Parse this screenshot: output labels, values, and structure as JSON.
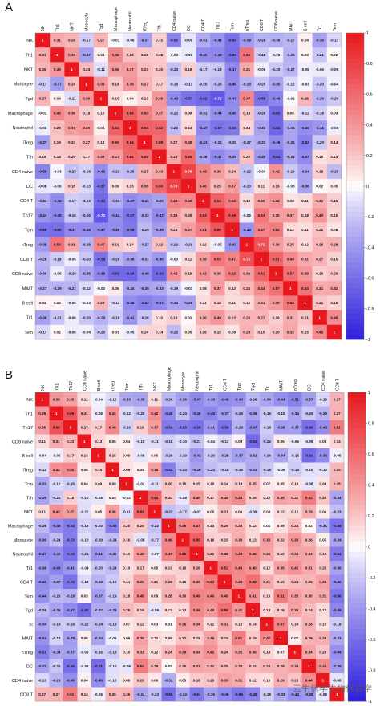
{
  "panels": [
    {
      "letter": "A"
    },
    {
      "letter": "B"
    }
  ],
  "watermark": "云生信学生物信息学",
  "chart_data": [
    {
      "type": "heatmap",
      "panel": "A",
      "title": "",
      "labels": [
        "NK",
        "Th1",
        "NKT",
        "Monocyte",
        "Tgd",
        "Macrophage",
        "Neutrophil",
        "iTreg",
        "Tfh",
        "CD4 naive",
        "DC",
        "CD4 T",
        "Th17",
        "Tcm",
        "nTreg",
        "CD8 T",
        "CD8 naive",
        "MAIT",
        "B cell",
        "Tr1",
        "Tem"
      ],
      "values": [
        [
          1,
          0.31,
          0.26,
          -0.17,
          0.27,
          -0.01,
          -0.06,
          -0.37,
          0.15,
          -0.5,
          -0.08,
          -0.31,
          -0.43,
          -0.59,
          -0.39,
          -0.28,
          -0.3,
          -0.27,
          0.04,
          -0.36,
          -0.13
        ],
        [
          0.31,
          1,
          0.39,
          -0.37,
          0.04,
          0.46,
          0.23,
          0.19,
          0.18,
          -0.03,
          -0.06,
          -0.46,
          -0.48,
          -0.6,
          0.56,
          -0.18,
          -0.06,
          -0.29,
          0.03,
          -0.21,
          0.02
        ],
        [
          0.26,
          0.39,
          1,
          0.24,
          -0.11,
          0.36,
          0.37,
          0.23,
          0.2,
          -0.23,
          0.16,
          -0.17,
          -0.19,
          -0.47,
          0.31,
          -0.05,
          -0.2,
          -0.27,
          -0.05,
          -0.06,
          -0.06
        ],
        [
          -0.17,
          -0.37,
          0.24,
          1,
          0.39,
          0.18,
          0.39,
          0.27,
          0.17,
          -0.16,
          -0.13,
          -0.2,
          -0.26,
          -0.46,
          -0.28,
          -0.2,
          -0.35,
          -0.12,
          -0.03,
          -0.2,
          -0.04
        ],
        [
          0.27,
          0.04,
          -0.11,
          0.39,
          1,
          0.1,
          0.04,
          0.13,
          0.39,
          -0.46,
          -0.57,
          -0.62,
          -0.72,
          -0.47,
          0.47,
          -0.58,
          -0.49,
          -0.02,
          0.26,
          -0.29,
          -0.2
        ],
        [
          -0.01,
          0.46,
          0.36,
          0.18,
          0.1,
          1,
          0.64,
          0.5,
          0.37,
          -0.22,
          0.09,
          -0.31,
          -0.44,
          -0.45,
          0.19,
          -0.26,
          -0.62,
          0.06,
          -0.12,
          -0.18,
          0.03
        ],
        [
          -0.06,
          0.23,
          0.37,
          0.39,
          0.04,
          0.64,
          1,
          0.64,
          0.62,
          -0.25,
          0.13,
          -0.47,
          -0.57,
          -0.55,
          0.14,
          -0.36,
          -0.64,
          -0.34,
          -0.46,
          -0.41,
          -0.05
        ],
        [
          -0.37,
          0.19,
          0.23,
          0.27,
          0.13,
          0.5,
          0.64,
          1,
          0.58,
          0.27,
          0.36,
          -0.41,
          -0.32,
          -0.25,
          -0.27,
          -0.31,
          -0.46,
          -0.35,
          -0.52,
          -0.2,
          0.14
        ],
        [
          0.15,
          0.18,
          0.2,
          0.17,
          0.39,
          0.37,
          0.62,
          0.58,
          1,
          0.33,
          0.6,
          -0.36,
          -0.47,
          -0.39,
          0.22,
          -0.4,
          -0.63,
          -0.33,
          -0.47,
          0.1,
          0.14
        ],
        [
          -0.5,
          -0.03,
          -0.23,
          -0.16,
          -0.46,
          -0.22,
          -0.25,
          0.27,
          0.33,
          1,
          0.78,
          0.48,
          0.36,
          0.24,
          -0.22,
          -0.03,
          0.42,
          -0.19,
          -0.34,
          0.16,
          -0.25
        ],
        [
          -0.08,
          -0.06,
          0.16,
          -0.13,
          -0.57,
          0.09,
          0.13,
          0.36,
          0.6,
          0.78,
          1,
          0.46,
          0.25,
          0.37,
          -0.2,
          0.11,
          0.19,
          -0.03,
          -0.36,
          0.02,
          0.05
        ],
        [
          -0.31,
          -0.46,
          -0.17,
          -0.2,
          -0.62,
          -0.31,
          -0.47,
          -0.41,
          -0.36,
          0.48,
          0.46,
          1,
          0.64,
          0.51,
          0.12,
          0.36,
          0.42,
          0.08,
          0.11,
          0.3,
          0.16
        ],
        [
          -0.43,
          -0.48,
          -0.19,
          -0.26,
          -0.72,
          -0.44,
          -0.57,
          -0.32,
          -0.47,
          0.36,
          0.25,
          0.64,
          1,
          0.69,
          -0.05,
          0.53,
          0.35,
          0.37,
          0.18,
          0.4,
          0.15
        ],
        [
          -0.59,
          -0.6,
          -0.47,
          -0.46,
          -0.47,
          -0.45,
          -0.55,
          -0.25,
          -0.39,
          0.24,
          0.37,
          0.51,
          0.69,
          1,
          -0.43,
          0.47,
          0.52,
          0.12,
          0.11,
          0.22,
          0.08
        ],
        [
          -0.39,
          0.56,
          0.31,
          -0.28,
          0.47,
          0.19,
          0.14,
          -0.27,
          0.22,
          -0.22,
          -0.2,
          0.12,
          -0.05,
          -0.43,
          1,
          0.72,
          0.36,
          0.25,
          0.12,
          0.26,
          0.28
        ],
        [
          -0.28,
          -0.18,
          -0.05,
          -0.2,
          -0.58,
          -0.26,
          -0.36,
          -0.31,
          -0.4,
          -0.03,
          0.11,
          0.36,
          0.53,
          0.47,
          0.72,
          1,
          0.61,
          0.44,
          0.31,
          0.27,
          0.15
        ],
        [
          -0.3,
          -0.06,
          -0.2,
          -0.35,
          -0.49,
          -0.62,
          -0.64,
          -0.46,
          -0.63,
          0.42,
          0.19,
          0.42,
          0.35,
          0.52,
          0.36,
          0.61,
          1,
          0.57,
          0.39,
          0.16,
          0.2
        ],
        [
          -0.27,
          -0.29,
          -0.27,
          -0.12,
          -0.02,
          0.06,
          -0.34,
          -0.35,
          -0.33,
          -0.19,
          -0.03,
          0.08,
          0.37,
          0.12,
          0.25,
          0.44,
          0.57,
          1,
          0.54,
          0.31,
          0.32
        ],
        [
          0.04,
          0.03,
          -0.05,
          -0.03,
          0.26,
          -0.12,
          -0.46,
          -0.52,
          -0.47,
          -0.34,
          -0.36,
          0.11,
          0.18,
          0.11,
          0.12,
          0.31,
          0.39,
          0.54,
          1,
          0.21,
          0.15
        ],
        [
          -0.36,
          -0.21,
          -0.06,
          -0.2,
          -0.29,
          -0.18,
          -0.41,
          -0.2,
          0.1,
          0.16,
          0.02,
          0.3,
          0.4,
          0.22,
          0.26,
          0.27,
          0.16,
          0.31,
          0.21,
          1,
          0.45
        ],
        [
          -0.13,
          0.02,
          -0.06,
          -0.04,
          -0.2,
          0.03,
          -0.05,
          0.14,
          0.14,
          -0.25,
          0.05,
          0.16,
          0.15,
          0.08,
          0.28,
          0.15,
          0.2,
          0.32,
          0.15,
          0.45,
          1
        ]
      ],
      "colorbar": {
        "ticks": [
          1,
          0.8,
          0.6,
          0.4,
          0.2,
          0,
          -0.2,
          -0.4,
          -0.6,
          -0.8,
          -1
        ],
        "low": "#2e1fdc",
        "mid": "#ffffff",
        "high": "#e8181e"
      }
    },
    {
      "type": "heatmap",
      "panel": "B",
      "title": "",
      "labels": [
        "NK",
        "Th1",
        "Th17",
        "CD8 naive",
        "B cell",
        "iTreg",
        "Tcm",
        "Tfh",
        "NKT",
        "Macrophage",
        "Monocyte",
        "Neutrophil",
        "Tr1",
        "CD4 T",
        "Tem",
        "Tgd",
        "Tc",
        "MAIT",
        "nTreg",
        "DC",
        "CD4 naive",
        "CD8 T"
      ],
      "values": [
        [
          1,
          0.39,
          0.35,
          0.11,
          -0.04,
          -0.12,
          -0.33,
          -0.35,
          0.11,
          -0.26,
          -0.36,
          -0.47,
          -0.38,
          -0.46,
          -0.44,
          -0.26,
          -0.34,
          -0.44,
          -0.51,
          -0.37,
          -0.13,
          0.27
        ],
        [
          0.39,
          1,
          0.69,
          0.31,
          -0.05,
          0.42,
          -0.12,
          -0.2,
          0.42,
          -0.46,
          -0.24,
          -0.45,
          -0.49,
          -0.37,
          -0.26,
          -0.36,
          -0.19,
          -0.15,
          -0.34,
          -0.2,
          -0.29,
          0.27
        ],
        [
          0.35,
          0.69,
          1,
          0.23,
          0.17,
          0.45,
          -0.16,
          0.16,
          0.37,
          -0.54,
          -0.53,
          -0.59,
          -0.41,
          -0.59,
          -0.29,
          -0.47,
          -0.18,
          -0.38,
          -0.37,
          -0.6,
          -0.45,
          0.51
        ],
        [
          0.11,
          0.31,
          0.23,
          1,
          0.13,
          0.06,
          0.04,
          -0.1,
          -0.11,
          -0.16,
          -0.1,
          -0.21,
          -0.04,
          -0.12,
          0.03,
          -0.62,
          -0.22,
          0.05,
          -0.06,
          -0.06,
          0.04,
          0.14
        ],
        [
          -0.04,
          -0.05,
          0.17,
          0.13,
          1,
          0.15,
          0.09,
          -0.08,
          0.05,
          -0.2,
          -0.19,
          -0.41,
          -0.2,
          -0.28,
          -0.37,
          -0.32,
          -0.24,
          -0.34,
          -0.16,
          -0.61,
          -0.46,
          -0.05
        ],
        [
          -0.12,
          0.42,
          0.45,
          0.06,
          0.15,
          1,
          0.09,
          0.04,
          0.36,
          -0.52,
          -0.24,
          -0.36,
          -0.24,
          -0.18,
          -0.19,
          -0.33,
          -0.19,
          -0.06,
          -0.18,
          -0.1,
          -0.1,
          0.25
        ],
        [
          -0.33,
          -0.12,
          -0.16,
          0.04,
          0.09,
          0.09,
          1,
          -0.02,
          -0.11,
          0.2,
          0.16,
          0.15,
          0.1,
          0.14,
          0.18,
          0.25,
          0.07,
          0.05,
          0.1,
          -0.08,
          0.08,
          0.26
        ],
        [
          -0.35,
          -0.2,
          0.16,
          -0.1,
          -0.08,
          0.04,
          -0.02,
          1,
          0.63,
          0.2,
          -0.08,
          0.4,
          0.17,
          0.36,
          0.45,
          0.19,
          0.12,
          0.35,
          0.31,
          0.52,
          0.2,
          -0.34
        ],
        [
          0.11,
          0.42,
          0.37,
          -0.11,
          0.05,
          0.36,
          -0.11,
          0.63,
          1,
          -0.22,
          -0.17,
          -0.07,
          0.05,
          0.21,
          0.08,
          -0.09,
          0.03,
          0.12,
          0.12,
          0.29,
          0.06,
          -0.23
        ],
        [
          -0.26,
          -0.46,
          -0.54,
          -0.16,
          -0.2,
          -0.52,
          0.2,
          0.2,
          -0.22,
          1,
          0.46,
          0.47,
          0.13,
          0.26,
          0.28,
          0.12,
          0.01,
          0.09,
          0.24,
          0.02,
          -0.31,
          -0.58
        ],
        [
          -0.36,
          -0.24,
          -0.53,
          -0.1,
          -0.19,
          -0.24,
          0.16,
          -0.08,
          -0.17,
          0.46,
          1,
          0.65,
          0.16,
          0.15,
          0.3,
          0.13,
          0.36,
          0.22,
          0.39,
          0.26,
          0.05,
          -0.34
        ],
        [
          -0.47,
          -0.45,
          -0.59,
          -0.21,
          -0.41,
          -0.36,
          0.15,
          0.4,
          -0.07,
          0.47,
          0.65,
          1,
          0.26,
          0.38,
          0.49,
          0.46,
          0.34,
          0.18,
          0.34,
          0.33,
          0.18,
          -0.54
        ],
        [
          -0.38,
          -0.49,
          -0.41,
          -0.04,
          -0.2,
          -0.24,
          0.1,
          0.17,
          0.05,
          0.13,
          0.16,
          0.26,
          1,
          0.52,
          0.46,
          0.4,
          0.12,
          0.35,
          0.42,
          0.31,
          0.2,
          -0.36
        ],
        [
          -0.46,
          -0.37,
          -0.59,
          -0.12,
          -0.28,
          -0.18,
          0.14,
          0.36,
          0.21,
          0.26,
          0.15,
          0.38,
          0.52,
          1,
          0.45,
          0.58,
          0.31,
          0.19,
          0.24,
          0.26,
          0.35,
          -0.46
        ],
        [
          -0.44,
          -0.26,
          -0.29,
          0.03,
          -0.37,
          -0.19,
          0.18,
          0.45,
          0.08,
          0.28,
          0.3,
          0.49,
          0.46,
          0.45,
          1,
          0.41,
          0.13,
          0.51,
          0.35,
          0.3,
          0.31,
          -0.56
        ],
        [
          -0.26,
          -0.36,
          -0.47,
          -0.62,
          -0.32,
          -0.33,
          0.25,
          0.19,
          -0.09,
          0.12,
          0.13,
          0.46,
          0.4,
          0.58,
          0.41,
          1,
          0.14,
          0.19,
          0.36,
          0.24,
          0.12,
          -0.49
        ],
        [
          -0.34,
          -0.19,
          -0.18,
          -0.22,
          -0.24,
          -0.19,
          0.07,
          0.12,
          0.03,
          0.01,
          0.36,
          0.34,
          0.12,
          0.31,
          0.13,
          0.14,
          1,
          0.47,
          0.14,
          0.28,
          0.1,
          -0.18
        ],
        [
          -0.44,
          -0.15,
          -0.38,
          0.05,
          -0.34,
          -0.06,
          0.05,
          0.35,
          0.12,
          0.09,
          0.22,
          0.18,
          0.35,
          0.19,
          0.51,
          0.19,
          0.47,
          1,
          0.07,
          0.28,
          0.29,
          -0.33
        ],
        [
          -0.51,
          -0.34,
          -0.37,
          -0.06,
          -0.16,
          -0.18,
          0.1,
          0.31,
          0.12,
          0.24,
          0.39,
          0.34,
          0.42,
          0.24,
          0.35,
          0.36,
          0.14,
          0.07,
          1,
          0.34,
          0.2,
          -0.44
        ],
        [
          -0.37,
          -0.2,
          -0.6,
          -0.06,
          -0.61,
          -0.1,
          -0.08,
          0.52,
          0.29,
          0.02,
          0.26,
          0.33,
          0.31,
          0.26,
          0.3,
          0.24,
          0.28,
          0.28,
          0.34,
          1,
          0.44,
          -0.39
        ],
        [
          -0.13,
          -0.29,
          -0.45,
          0.04,
          -0.46,
          -0.1,
          0.08,
          0.2,
          0.06,
          -0.31,
          0.05,
          0.18,
          0.2,
          0.35,
          0.31,
          0.12,
          0.1,
          0.29,
          0.2,
          0.44,
          1,
          -0.08
        ],
        [
          0.27,
          0.27,
          0.51,
          0.14,
          -0.05,
          0.25,
          0.26,
          -0.34,
          -0.23,
          -0.58,
          -0.34,
          -0.54,
          -0.36,
          -0.46,
          -0.56,
          -0.49,
          -0.18,
          -0.33,
          -0.44,
          -0.39,
          -0.08,
          1
        ]
      ],
      "colorbar": {
        "ticks": [
          1,
          0.8,
          0.6,
          0.4,
          0.2,
          0,
          -0.2,
          -0.4,
          -0.6,
          -0.8,
          -1
        ],
        "low": "#2e1fdc",
        "mid": "#ffffff",
        "high": "#e8181e"
      }
    }
  ]
}
